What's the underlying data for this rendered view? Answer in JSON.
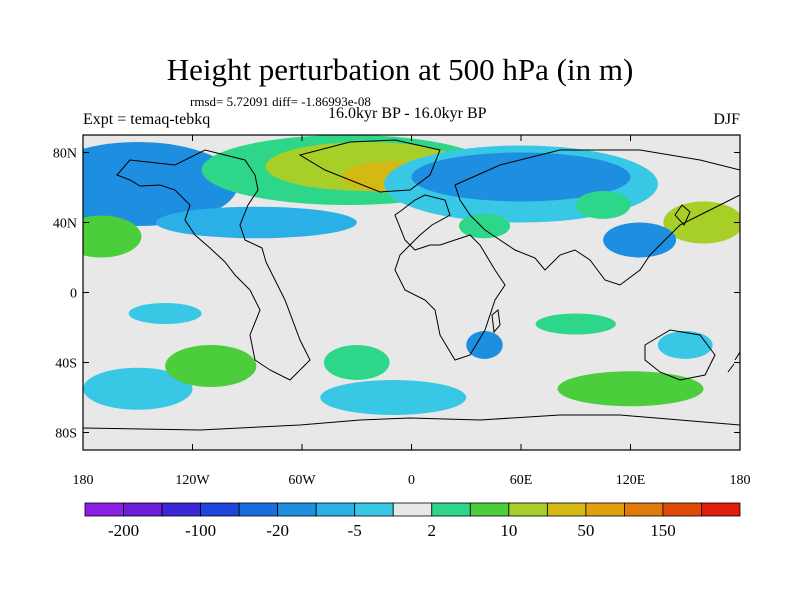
{
  "title": "Height perturbation at 500 hPa (in m)",
  "stats": "rmsd= 5.72091 diff= -1.86993e-08",
  "experiment": "Expt = temaq-tebkq",
  "period": "16.0kyr BP - 16.0kyr BP",
  "season": "DJF",
  "axes": {
    "lat_labels": [
      "80N",
      "40N",
      "0",
      "40S",
      "80S"
    ],
    "lat_values": [
      80,
      40,
      0,
      -40,
      -80
    ],
    "lon_labels": [
      "180",
      "120W",
      "60W",
      "0",
      "60E",
      "120E",
      "180"
    ],
    "lon_values": [
      -180,
      -120,
      -60,
      0,
      60,
      120,
      180
    ]
  },
  "colorbar": {
    "colors": [
      "#8c1ee6",
      "#6d1ed9",
      "#3a28d6",
      "#1e46dc",
      "#1a6de0",
      "#1e8fe0",
      "#2ab0e6",
      "#39c7e6",
      "#e8e8e8",
      "#2ed68a",
      "#4ccd3c",
      "#a8cf28",
      "#d4b814",
      "#e0a010",
      "#e07a0a",
      "#e04b0a",
      "#e01c0a"
    ],
    "tick_labels": [
      "-200",
      "-100",
      "-20",
      "-5",
      "2",
      "10",
      "50",
      "150"
    ]
  },
  "fields": {
    "background": "#e8e8e8",
    "coast_color": "#000000",
    "regions": [
      {
        "name": "n-pacific-low",
        "lon": -160,
        "lat": 62,
        "rlon": 28,
        "rlat": 18,
        "color": "#1a6de0"
      },
      {
        "name": "n-pacific-outer",
        "lon": -150,
        "lat": 62,
        "rlon": 55,
        "rlat": 24,
        "color": "#1e8fe0"
      },
      {
        "name": "greenland-high-outer",
        "lon": -35,
        "lat": 70,
        "rlon": 80,
        "rlat": 20,
        "color": "#2ed68a"
      },
      {
        "name": "greenland-high",
        "lon": -25,
        "lat": 72,
        "rlon": 55,
        "rlat": 14,
        "color": "#a8cf28"
      },
      {
        "name": "greenland-high-core",
        "lon": -10,
        "lat": 66,
        "rlon": 28,
        "rlat": 9,
        "color": "#d4b814"
      },
      {
        "name": "eurasia-low-outer",
        "lon": 60,
        "lat": 62,
        "rlon": 75,
        "rlat": 22,
        "color": "#39c7e6"
      },
      {
        "name": "eurasia-low",
        "lon": 60,
        "lat": 66,
        "rlon": 60,
        "rlat": 14,
        "color": "#1e8fe0"
      },
      {
        "name": "n-america-band",
        "lon": -85,
        "lat": 40,
        "rlon": 55,
        "rlat": 9,
        "color": "#2ab0e6"
      },
      {
        "name": "pacific-high",
        "lon": -170,
        "lat": 32,
        "rlon": 22,
        "rlat": 12,
        "color": "#4ccd3c"
      },
      {
        "name": "japan-high",
        "lon": 160,
        "lat": 40,
        "rlon": 22,
        "rlat": 12,
        "color": "#a8cf28"
      },
      {
        "name": "s-ocean-low-1",
        "lon": -150,
        "lat": -55,
        "rlon": 30,
        "rlat": 12,
        "color": "#39c7e6"
      },
      {
        "name": "s-ocean-high-1",
        "lon": -110,
        "lat": -42,
        "rlon": 25,
        "rlat": 12,
        "color": "#4ccd3c"
      },
      {
        "name": "s-atl-low",
        "lon": -10,
        "lat": -60,
        "rlon": 40,
        "rlat": 10,
        "color": "#39c7e6"
      },
      {
        "name": "s-ind-high",
        "lon": 120,
        "lat": -55,
        "rlon": 40,
        "rlat": 10,
        "color": "#4ccd3c"
      },
      {
        "name": "s-atl-high",
        "lon": -30,
        "lat": -40,
        "rlon": 18,
        "rlat": 10,
        "color": "#2ed68a"
      },
      {
        "name": "s-africa-low",
        "lon": 40,
        "lat": -30,
        "rlon": 10,
        "rlat": 8,
        "color": "#1e8fe0"
      },
      {
        "name": "s-pacific-low",
        "lon": -135,
        "lat": -12,
        "rlon": 20,
        "rlat": 6,
        "color": "#39c7e6"
      },
      {
        "name": "indian-high",
        "lon": 90,
        "lat": -18,
        "rlon": 22,
        "rlat": 6,
        "color": "#2ed68a"
      },
      {
        "name": "australia-low",
        "lon": 150,
        "lat": -30,
        "rlon": 15,
        "rlat": 8,
        "color": "#39c7e6"
      },
      {
        "name": "asia-high-1",
        "lon": 40,
        "lat": 38,
        "rlon": 14,
        "rlat": 7,
        "color": "#2ed68a"
      },
      {
        "name": "asia-high-2",
        "lon": 105,
        "lat": 50,
        "rlon": 15,
        "rlat": 8,
        "color": "#2ed68a"
      },
      {
        "name": "china-low",
        "lon": 125,
        "lat": 30,
        "rlon": 20,
        "rlat": 10,
        "color": "#1e8fe0"
      }
    ]
  }
}
